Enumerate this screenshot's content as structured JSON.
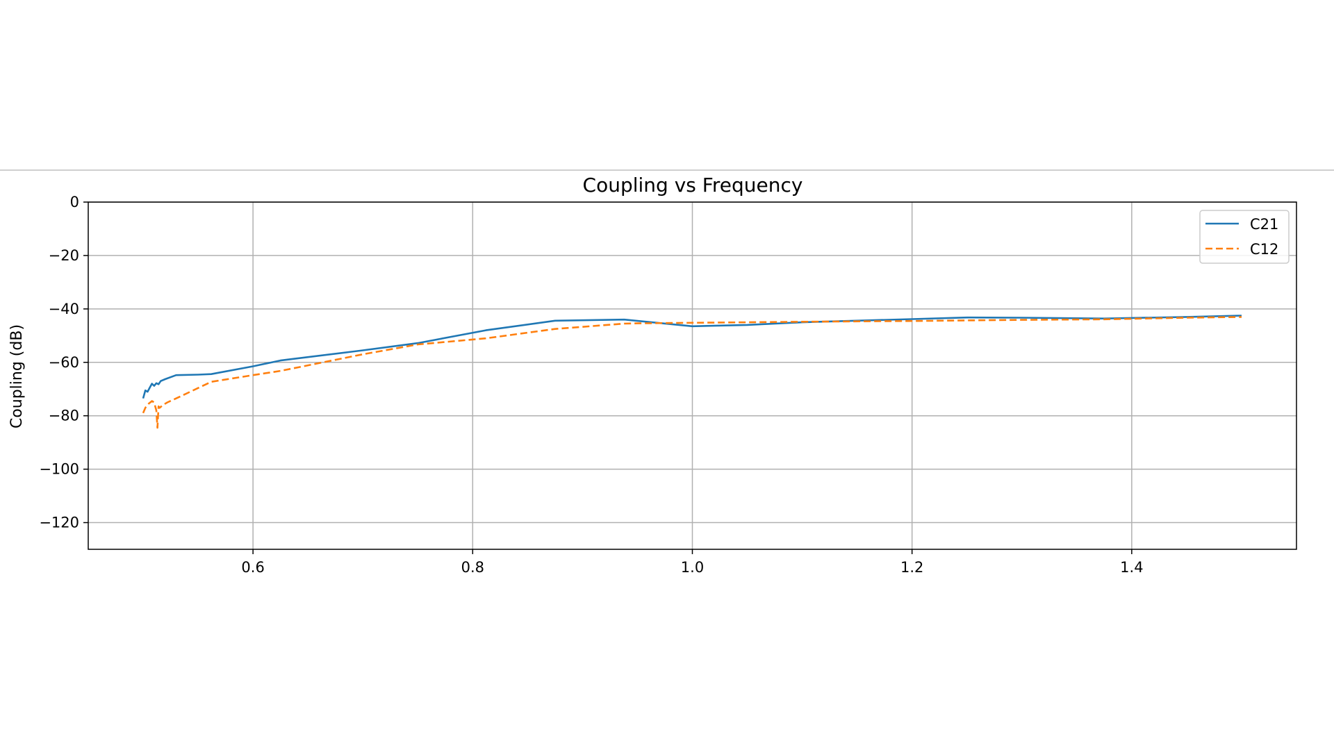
{
  "chart_data": {
    "type": "line",
    "title": "Coupling vs Frequency",
    "xlabel": "",
    "ylabel": "Coupling (dB)",
    "xlim": [
      0.45,
      1.55
    ],
    "ylim": [
      -130,
      0
    ],
    "xticks": [
      0.6,
      0.8,
      1.0,
      1.2,
      1.4
    ],
    "xtick_labels": [
      "0.6",
      "0.8",
      "1.0",
      "1.2",
      "1.4"
    ],
    "yticks": [
      0,
      -20,
      -40,
      -60,
      -80,
      -100,
      -120
    ],
    "ytick_labels": [
      "0",
      "−20",
      "−40",
      "−60",
      "−80",
      "−100",
      "−120"
    ],
    "grid": true,
    "legend_position": "top-right",
    "series": [
      {
        "name": "C21",
        "color": "#1f77b4",
        "dash": "solid",
        "x": [
          0.5,
          0.502,
          0.504,
          0.506,
          0.508,
          0.51,
          0.512,
          0.514,
          0.516,
          0.52,
          0.53,
          0.55,
          0.562,
          0.6,
          0.625,
          0.7,
          0.75,
          0.812,
          0.875,
          0.938,
          1.0,
          1.05,
          1.1,
          1.2,
          1.25,
          1.3,
          1.375,
          1.45,
          1.5
        ],
        "y": [
          -73.5,
          -70.5,
          -71.0,
          -69.5,
          -68.0,
          -68.8,
          -67.8,
          -68.2,
          -67.0,
          -66.3,
          -64.8,
          -64.6,
          -64.4,
          -61.5,
          -59.3,
          -55.5,
          -52.8,
          -48.0,
          -44.4,
          -44.0,
          -46.5,
          -46.0,
          -45.0,
          -43.8,
          -43.2,
          -43.3,
          -43.6,
          -43.0,
          -42.5
        ]
      },
      {
        "name": "C12",
        "color": "#ff7f0e",
        "dash": "dashed",
        "x": [
          0.5,
          0.502,
          0.505,
          0.508,
          0.51,
          0.511,
          0.512,
          0.513,
          0.514,
          0.515,
          0.518,
          0.522,
          0.53,
          0.562,
          0.6,
          0.625,
          0.7,
          0.75,
          0.812,
          0.875,
          0.938,
          0.95,
          1.0,
          1.05,
          1.1,
          1.2,
          1.25,
          1.3,
          1.375,
          1.45,
          1.5
        ],
        "y": [
          -79.0,
          -77.0,
          -75.5,
          -74.5,
          -75.0,
          -76.5,
          -78.0,
          -84.5,
          -76.5,
          -77.0,
          -76.0,
          -75.0,
          -73.5,
          -67.3,
          -64.8,
          -63.2,
          -57.0,
          -53.3,
          -51.0,
          -47.5,
          -45.5,
          -45.4,
          -45.2,
          -45.0,
          -44.8,
          -44.5,
          -44.3,
          -44.1,
          -43.9,
          -43.3,
          -43.0
        ]
      }
    ]
  }
}
